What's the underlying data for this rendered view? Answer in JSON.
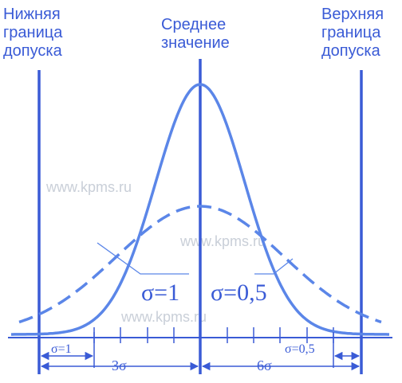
{
  "colors": {
    "main": "#3a5bd6",
    "curve": "#5b86e8",
    "watermark": "#c9cfd8",
    "background": "#ffffff"
  },
  "labels": {
    "lower_limit": [
      "Нижняя",
      "граница",
      "допуска"
    ],
    "mean": [
      "Среднее",
      "значение"
    ],
    "upper_limit": [
      "Верхняя",
      "граница",
      "допуска"
    ]
  },
  "curves": {
    "narrow": {
      "label": "σ=1",
      "style": "solid"
    },
    "wide": {
      "label": "σ=0,5",
      "style": "dashed"
    }
  },
  "axis": {
    "sigma_small_left": "σ=1",
    "three_sigma": "3σ",
    "six_sigma": "6σ",
    "sigma_small_right": "σ=0,5"
  },
  "watermarks": [
    "www.kpms.ru",
    "www.kpms.ru",
    "www.kpms.ru"
  ]
}
